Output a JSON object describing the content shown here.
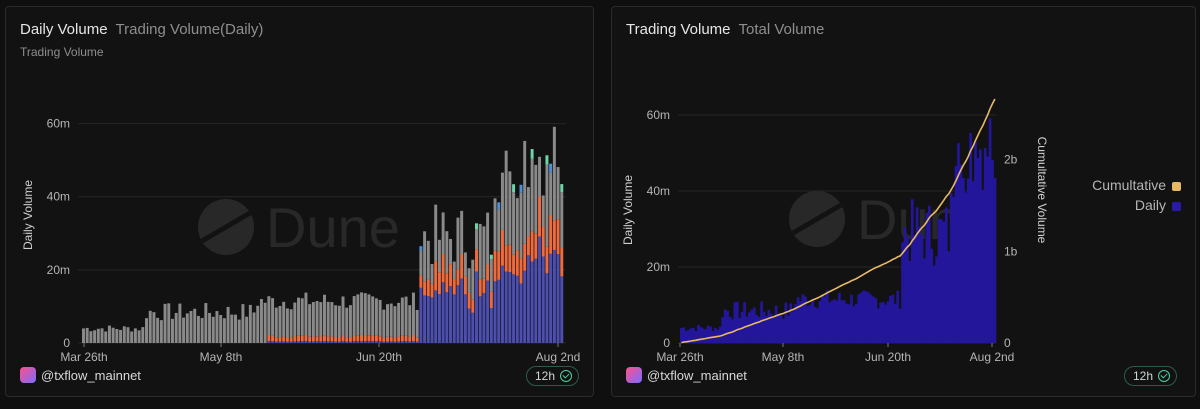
{
  "watermark": "Dune",
  "panels": [
    {
      "title": "Daily Volume",
      "subtitle_inline": "Trading Volume(Daily)",
      "subtitle": "Trading Volume",
      "user": "@txflow_mainnet",
      "refresh": "12h"
    },
    {
      "title": "Trading Volume",
      "subtitle_inline": "Total Volume",
      "user": "@txflow_mainnet",
      "refresh": "12h",
      "legend": [
        {
          "label": "Cumultative",
          "color": "#e8b865"
        },
        {
          "label": "Daily",
          "color": "#2a1aa8"
        }
      ]
    }
  ],
  "chart_data": [
    {
      "type": "bar",
      "stacked": true,
      "ylabel": "Daily Volume",
      "xlabel": "",
      "ylim": [
        0,
        70
      ],
      "y_unit": "m",
      "y_ticks": [
        "0",
        "20m",
        "40m",
        "60m"
      ],
      "x_ticks": [
        "Mar 26th",
        "May 8th",
        "Jun 20th",
        "Aug 2nd"
      ],
      "x_range": [
        "2025-03-26",
        "2025-08-02"
      ],
      "grid": true,
      "colors": {
        "base": "#8a8a8a",
        "orange": "#ef6a3c",
        "purple": "#4d4fb0",
        "blue": "#4e8fd6",
        "green": "#6dd4a8",
        "pink": "#d062c8"
      },
      "series_summary": [
        {
          "period": "Mar 26th – Apr 10th",
          "total_range_m": [
            3,
            5
          ]
        },
        {
          "period": "Apr 10th – May 8th",
          "total_range_m": [
            6,
            11
          ]
        },
        {
          "period": "May 8th – Jun 20th",
          "total_range_m": [
            9,
            14
          ]
        },
        {
          "period": "Jun 20th – Jul 10th",
          "total_range_m": [
            20,
            38
          ]
        },
        {
          "period": "Jul 10th – Aug 2nd",
          "total_range_m": [
            30,
            68
          ]
        }
      ]
    },
    {
      "type": "bar+line",
      "ylabel": "Daily Volume",
      "ylabel_right": "Cumultative Volume",
      "ylim": [
        0,
        70
      ],
      "ylim_right": [
        0,
        2.9
      ],
      "y_ticks": [
        "0",
        "20m",
        "40m",
        "60m"
      ],
      "y_ticks_right": [
        "0",
        "1b",
        "2b"
      ],
      "x_ticks": [
        "Mar 26th",
        "May 8th",
        "Jun 20th",
        "Aug 2nd"
      ],
      "x_range": [
        "2025-03-26",
        "2025-08-02"
      ],
      "grid": true,
      "legend_position": "right",
      "cumulative_end_b": 2.66
    }
  ]
}
